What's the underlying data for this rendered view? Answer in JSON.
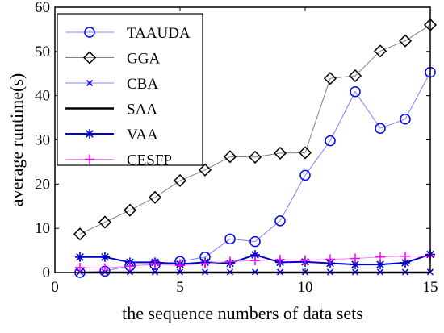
{
  "chart_data": {
    "type": "line",
    "title": "",
    "xlabel": "the sequence numbers of data sets",
    "ylabel": "average runtime(s)",
    "xlim": [
      0,
      15
    ],
    "ylim": [
      0,
      60
    ],
    "xticks": [
      0,
      5,
      10,
      15
    ],
    "yticks": [
      0,
      10,
      20,
      30,
      40,
      50,
      60
    ],
    "grid": false,
    "legend_position": "top-left",
    "x": [
      1,
      2,
      3,
      4,
      5,
      6,
      7,
      8,
      9,
      10,
      11,
      12,
      13,
      14,
      15
    ],
    "series": [
      {
        "name": "TAAUDA",
        "marker": "circle",
        "color": "#0000ff",
        "line_color": "#8080ff",
        "line_width": 1,
        "values": [
          0.0,
          0.3,
          1.5,
          1.8,
          2.5,
          3.5,
          7.6,
          7.0,
          11.7,
          22.0,
          29.8,
          40.9,
          32.6,
          34.7,
          45.3
        ]
      },
      {
        "name": "GGA",
        "marker": "diamond",
        "color": "#000000",
        "line_color": "#808080",
        "line_width": 1,
        "values": [
          8.7,
          11.4,
          14.1,
          17.0,
          20.8,
          23.2,
          26.2,
          26.1,
          27.0,
          27.1,
          43.9,
          44.5,
          50.1,
          52.4,
          56.0
        ]
      },
      {
        "name": "CBA",
        "marker": "x",
        "color": "#0000ff",
        "line_color": "#8080ff",
        "line_width": 1,
        "values": [
          0.1,
          0.1,
          0.1,
          0.1,
          0.1,
          0.1,
          0.1,
          0.1,
          0.1,
          0.1,
          0.1,
          0.1,
          0.1,
          0.1,
          0.1
        ]
      },
      {
        "name": "SAA",
        "marker": "none",
        "color": "#000000",
        "line_color": "#000000",
        "line_width": 2.5,
        "values": [
          0.0,
          0.0,
          0.0,
          0.0,
          0.0,
          0.0,
          0.0,
          0.0,
          0.0,
          0.0,
          0.0,
          0.0,
          0.0,
          0.0,
          0.0
        ]
      },
      {
        "name": "VAA",
        "marker": "asterisk",
        "color": "#0000cc",
        "line_color": "#0000cc",
        "line_width": 2,
        "values": [
          3.5,
          3.5,
          2.3,
          2.3,
          1.9,
          2.3,
          2.1,
          4.0,
          2.3,
          2.4,
          2.1,
          1.8,
          1.8,
          2.2,
          4.1
        ]
      },
      {
        "name": "CESFP",
        "marker": "plus",
        "color": "#ff00ff",
        "line_color": "#ff80ff",
        "line_width": 1,
        "values": [
          1.1,
          1.0,
          1.4,
          1.9,
          1.6,
          2.0,
          2.5,
          2.7,
          2.9,
          2.8,
          3.0,
          3.2,
          3.5,
          3.7,
          3.7
        ]
      }
    ]
  }
}
